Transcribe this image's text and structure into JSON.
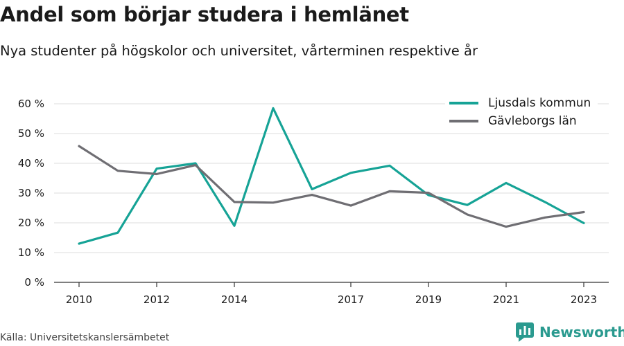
{
  "header": {
    "title": "Andel som börjar studera i hemlänet",
    "subtitle": "Nya studenter på högskolor och universitet, vårterminen respektive år"
  },
  "footer": {
    "source": "Källa: Universitetskanslersämbetet",
    "brand": "Newsworthy",
    "brand_icon": "bar-chart-logo-icon",
    "brand_color": "#2a9a8f"
  },
  "chart_data": {
    "type": "line",
    "x": [
      2010,
      2011,
      2012,
      2013,
      2014,
      2015,
      2016,
      2017,
      2018,
      2019,
      2020,
      2021,
      2022,
      2023
    ],
    "x_tick_labels": [
      "2010",
      "2012",
      "2014",
      "2017",
      "2019",
      "2021",
      "2023"
    ],
    "x_tick_values": [
      2010,
      2012,
      2014,
      2017,
      2019,
      2021,
      2023
    ],
    "y_tick_labels": [
      "0 %",
      "10 %",
      "20 %",
      "30 %",
      "40 %",
      "50 %",
      "60 %"
    ],
    "y_tick_values": [
      0,
      10,
      20,
      30,
      40,
      50,
      60
    ],
    "ylim": [
      0,
      60
    ],
    "y_unit": "%",
    "grid": true,
    "legend_position": "top-right",
    "series": [
      {
        "name": "Ljusdals kommun",
        "color": "#16a396",
        "values": [
          13,
          16.7,
          38.2,
          40,
          19,
          58.5,
          31.3,
          36.8,
          39.2,
          29.3,
          26,
          33.4,
          27,
          19.9
        ]
      },
      {
        "name": "Gävleborgs län",
        "color": "#6f6e73",
        "values": [
          45.8,
          37.5,
          36.4,
          39.4,
          27,
          26.8,
          29.4,
          25.8,
          30.6,
          30.1,
          22.8,
          18.7,
          21.8,
          23.6
        ]
      }
    ]
  }
}
